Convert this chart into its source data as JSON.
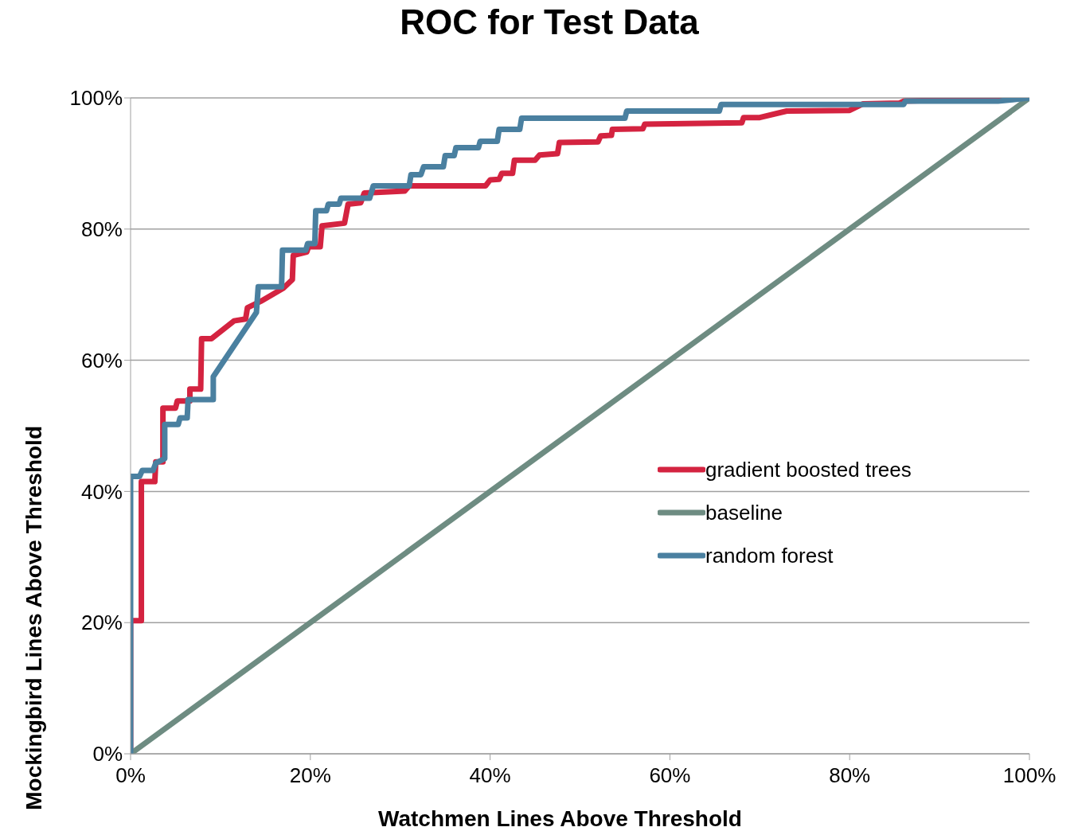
{
  "chart_data": {
    "type": "line",
    "title": "ROC for Test Data",
    "xlabel": "Watchmen Lines Above Threshold",
    "ylabel": "Mockingbird Lines Above Threshold",
    "xlim": [
      0,
      100
    ],
    "ylim": [
      0,
      100
    ],
    "xticks": [
      {
        "value": 0,
        "label": "0%"
      },
      {
        "value": 20,
        "label": "20%"
      },
      {
        "value": 40,
        "label": "40%"
      },
      {
        "value": 60,
        "label": "60%"
      },
      {
        "value": 80,
        "label": "80%"
      },
      {
        "value": 100,
        "label": "100%"
      }
    ],
    "yticks": [
      {
        "value": 0,
        "label": "0%"
      },
      {
        "value": 20,
        "label": "20%"
      },
      {
        "value": 40,
        "label": "40%"
      },
      {
        "value": 60,
        "label": "60%"
      },
      {
        "value": 80,
        "label": "80%"
      },
      {
        "value": 100,
        "label": "100%"
      }
    ],
    "grid": "y",
    "legend": "right",
    "marker": "none",
    "line_style": "solid",
    "series": [
      {
        "name": "gradient boosted trees",
        "color": "#d42340",
        "x": [
          0,
          0,
          1.2,
          1.2,
          2.7,
          2.8,
          3.6,
          3.6,
          5,
          5.2,
          6.6,
          6.6,
          7.8,
          7.9,
          9,
          11.5,
          12.8,
          13,
          14.5,
          17,
          18,
          18.1,
          19.6,
          19.8,
          21.1,
          21.3,
          23.8,
          24.2,
          25.6,
          26,
          30.5,
          31,
          39.5,
          40,
          41,
          41.3,
          42.5,
          42.7,
          45,
          45.5,
          47.5,
          47.7,
          52,
          52.3,
          53.5,
          53.6,
          57,
          57.2,
          68,
          68.2,
          70,
          73,
          80,
          81.5,
          85.5,
          86,
          100
        ],
        "values": [
          0,
          20.3,
          20.3,
          41.5,
          41.5,
          44.5,
          44.5,
          52.7,
          52.7,
          53.8,
          53.8,
          55.6,
          55.6,
          63.3,
          63.3,
          66,
          66.3,
          68,
          69,
          71,
          72.3,
          76,
          76.5,
          77.3,
          77.3,
          80.5,
          80.9,
          83.8,
          84,
          85.5,
          85.8,
          86.6,
          86.6,
          87.5,
          87.6,
          88.5,
          88.5,
          90.5,
          90.5,
          91.3,
          91.5,
          93.2,
          93.3,
          94.2,
          94.3,
          95.2,
          95.3,
          96,
          96.2,
          97,
          97,
          98,
          98.1,
          99.1,
          99.2,
          99.5,
          100
        ]
      },
      {
        "name": "baseline",
        "color": "#6e8c82",
        "x": [
          0,
          100
        ],
        "values": [
          0,
          100
        ]
      },
      {
        "name": "random forest",
        "color": "#4a80a0",
        "x": [
          0,
          0,
          1,
          1.3,
          2.5,
          2.8,
          3.8,
          3.8,
          5.3,
          5.5,
          6.3,
          6.4,
          9.2,
          9.2,
          14,
          14.2,
          16.8,
          16.9,
          19.5,
          19.7,
          20.5,
          20.6,
          21.8,
          22,
          23.2,
          23.4,
          26.6,
          27,
          31,
          31.2,
          32.3,
          32.6,
          34.8,
          35,
          36,
          36.2,
          38.7,
          38.9,
          40.8,
          41,
          43.3,
          43.5,
          55,
          55.2,
          65.5,
          65.7,
          86,
          86.2,
          96.5,
          100
        ],
        "values": [
          0,
          42.3,
          42.3,
          43.2,
          43.2,
          44.3,
          45,
          50.2,
          50.2,
          51.2,
          51.2,
          54,
          54,
          57.5,
          67.3,
          71.2,
          71.2,
          76.8,
          76.8,
          77.8,
          77.8,
          82.8,
          82.8,
          83.8,
          83.8,
          84.7,
          84.7,
          86.6,
          86.6,
          88.3,
          88.3,
          89.5,
          89.5,
          91.2,
          91.2,
          92.4,
          92.4,
          93.4,
          93.4,
          95.2,
          95.2,
          96.9,
          96.9,
          98,
          98,
          99,
          99,
          99.5,
          99.5,
          100
        ]
      }
    ]
  }
}
